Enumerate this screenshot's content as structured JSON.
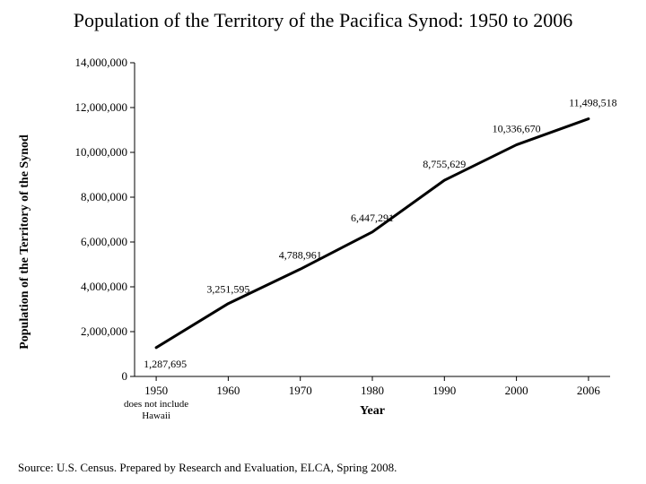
{
  "title": "Population of the Territory of the Pacifica Synod:  1950 to 2006",
  "source": "Source:  U.S. Census.   Prepared by Research and Evaluation, ELCA, Spring 2008.",
  "chart": {
    "type": "line",
    "xlabel": "Year",
    "ylabel": "Population of the Territory of the Synod",
    "background_color": "#ffffff",
    "line_color": "#000000",
    "line_width": 3,
    "axis_color": "#000000",
    "tick_font_size": 13,
    "label_font_size": 14,
    "title_font_size": 22,
    "data_label_font_size": 12,
    "x_categories": [
      "1950",
      "1960",
      "1970",
      "1980",
      "1990",
      "2000",
      "2006"
    ],
    "x_note": "does not include Hawaii",
    "y_min": 0,
    "y_max": 14000000,
    "y_tick_step": 2000000,
    "y_tick_labels": [
      "0",
      "2,000,000",
      "4,000,000",
      "6,000,000",
      "8,000,000",
      "10,000,000",
      "12,000,000",
      "14,000,000"
    ],
    "values": [
      1287695,
      3251595,
      4788961,
      6447291,
      8755629,
      10336670,
      11498518
    ],
    "value_labels": [
      "1,287,695",
      "3,251,595",
      "4,788,961",
      "6,447,291",
      "8,755,629",
      "10,336,670",
      "11,498,518"
    ],
    "label_dy": [
      22,
      -12,
      -12,
      -12,
      -14,
      -14,
      -14
    ],
    "label_dx": [
      10,
      0,
      0,
      0,
      0,
      0,
      5
    ]
  }
}
